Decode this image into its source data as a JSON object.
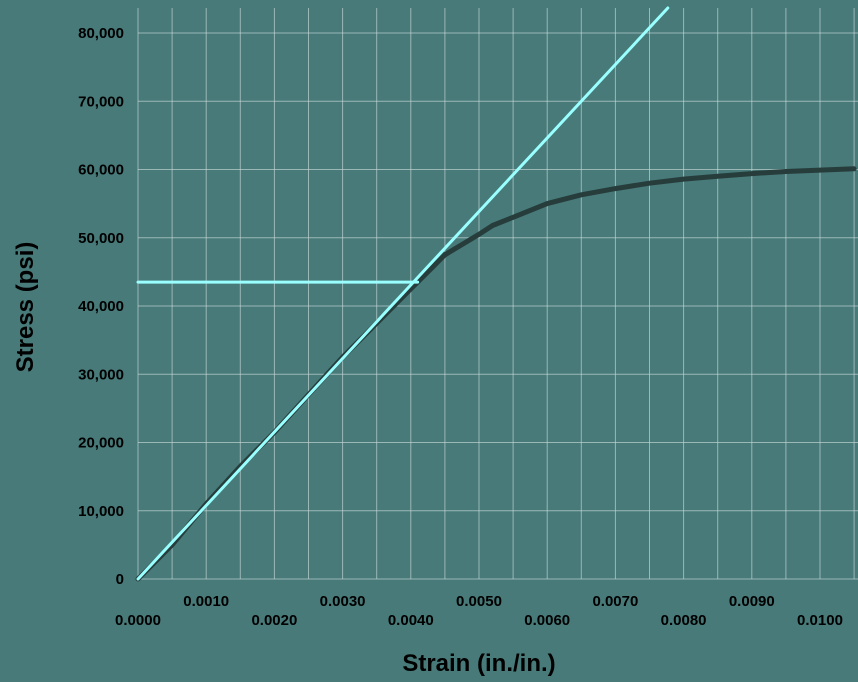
{
  "chart_data": {
    "type": "line",
    "title": "",
    "xlabel": "Strain (in./in.)",
    "ylabel": "Stress (psi)",
    "xlim": [
      0.0,
      0.0105
    ],
    "ylim": [
      0,
      80000
    ],
    "grid": true,
    "x_ticks_lower": [
      "0.0000",
      "0.0020",
      "0.0040",
      "0.0060",
      "0.0080",
      "0.0100"
    ],
    "x_ticks_upper": [
      "0.0010",
      "0.0030",
      "0.0050",
      "0.0070",
      "0.0090"
    ],
    "y_ticks": [
      "0",
      "10,000",
      "20,000",
      "30,000",
      "40,000",
      "50,000",
      "60,000",
      "70,000",
      "80,000"
    ],
    "colors": {
      "background": "#477a79",
      "stress_strain_curve": "#263d3c",
      "reference_line": "#99ffff"
    },
    "series": [
      {
        "role": "stress-strain-curve",
        "x": [
          0.0,
          0.0005,
          0.001,
          0.0015,
          0.002,
          0.0025,
          0.003,
          0.0035,
          0.004,
          0.0043,
          0.0045,
          0.0048,
          0.005,
          0.0052,
          0.0055,
          0.006,
          0.0065,
          0.007,
          0.0075,
          0.008,
          0.0085,
          0.009,
          0.0095,
          0.0105
        ],
        "y": [
          0,
          5000,
          11000,
          16500,
          21500,
          27000,
          32500,
          37500,
          42500,
          45500,
          47500,
          49300,
          50500,
          51800,
          53000,
          55000,
          56300,
          57200,
          58000,
          58600,
          59000,
          59400,
          59700,
          60100
        ]
      },
      {
        "role": "linear-reference-line",
        "x": [
          0.0,
          0.0078
        ],
        "y": [
          0,
          84000
        ]
      },
      {
        "role": "horizontal-yield-line",
        "x": [
          0.0,
          0.0041
        ],
        "y": [
          43500,
          43500
        ]
      }
    ]
  }
}
